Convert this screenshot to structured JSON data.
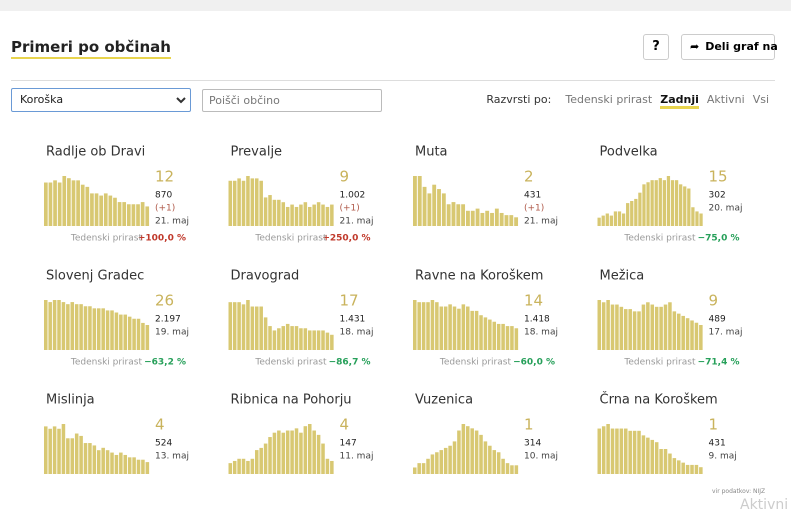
{
  "header": {
    "title": "Primeri po občinah",
    "help": "?",
    "share": "Deli graf na"
  },
  "controls": {
    "region": "Koroška",
    "search": "Poišči občino",
    "sort_label": "Razvrsti po:",
    "sort_options": [
      "Tedenski prirast",
      "Zadnji",
      "Aktivni",
      "Vsi"
    ],
    "sort_active": 1
  },
  "weekly_label": "Tedenski prirast",
  "panels": [
    {
      "name": "Radlje ob Dravi",
      "latest": "12",
      "total": "870",
      "note": "(+1)",
      "date": "21. maj",
      "weekly": "+100,0 %",
      "bars": [
        40,
        40,
        42,
        40,
        46,
        44,
        42,
        42,
        38,
        36,
        30,
        30,
        28,
        30,
        28,
        26,
        22,
        22,
        20,
        20,
        20,
        22,
        18
      ]
    },
    {
      "name": "Prevalje",
      "latest": "9",
      "total": "1.002",
      "note": "(+1)",
      "date": "21. maj",
      "weekly": "+250,0 %",
      "bars": [
        38,
        38,
        40,
        38,
        42,
        40,
        40,
        38,
        24,
        26,
        22,
        22,
        20,
        16,
        18,
        16,
        18,
        20,
        16,
        18,
        20,
        18,
        16,
        18
      ]
    },
    {
      "name": "Muta",
      "latest": "2",
      "total": "431",
      "note": "(+1)",
      "date": "21. maj",
      "bars": [
        46,
        46,
        36,
        30,
        38,
        34,
        30,
        20,
        22,
        20,
        20,
        14,
        14,
        16,
        12,
        14,
        12,
        16,
        12,
        10,
        10,
        8
      ]
    },
    {
      "name": "Podvelka",
      "latest": "15",
      "total": "302",
      "date": "20. maj",
      "weekly": "−75,0 %",
      "bars": [
        8,
        10,
        12,
        10,
        14,
        14,
        12,
        22,
        24,
        26,
        32,
        40,
        42,
        44,
        44,
        46,
        44,
        48,
        44,
        44,
        40,
        38,
        36,
        18,
        14,
        12
      ]
    },
    {
      "name": "Slovenj Gradec",
      "latest": "26",
      "total": "2.197",
      "date": "19. maj",
      "weekly": "−63,2 %",
      "bars": [
        48,
        46,
        48,
        48,
        46,
        44,
        46,
        44,
        44,
        42,
        42,
        40,
        40,
        40,
        38,
        38,
        36,
        34,
        34,
        32,
        30,
        30,
        26,
        24
      ]
    },
    {
      "name": "Dravograd",
      "latest": "17",
      "total": "1.431",
      "date": "18. maj",
      "weekly": "−86,7 %",
      "bars": [
        44,
        44,
        44,
        42,
        46,
        40,
        40,
        40,
        30,
        22,
        18,
        20,
        22,
        24,
        22,
        22,
        20,
        20,
        18,
        18,
        18,
        18,
        16,
        14
      ]
    },
    {
      "name": "Ravne na Koroškem",
      "latest": "14",
      "total": "1.418",
      "date": "18. maj",
      "weekly": "−60,0 %",
      "bars": [
        46,
        44,
        44,
        44,
        46,
        44,
        40,
        40,
        42,
        40,
        38,
        42,
        40,
        36,
        36,
        32,
        30,
        28,
        26,
        24,
        24,
        22,
        22,
        20
      ]
    },
    {
      "name": "Mežica",
      "latest": "9",
      "total": "489",
      "date": "17. maj",
      "weekly": "−71,4 %",
      "bars": [
        44,
        42,
        44,
        40,
        40,
        38,
        36,
        36,
        34,
        34,
        40,
        42,
        40,
        38,
        38,
        40,
        42,
        34,
        32,
        30,
        28,
        26,
        24,
        22
      ]
    },
    {
      "name": "Mislinja",
      "latest": "4",
      "total": "524",
      "date": "13. maj",
      "bars": [
        40,
        38,
        40,
        38,
        42,
        30,
        30,
        34,
        32,
        26,
        26,
        24,
        20,
        22,
        20,
        18,
        16,
        18,
        16,
        14,
        14,
        12,
        12,
        10
      ]
    },
    {
      "name": "Ribnica na Pohorju",
      "latest": "4",
      "total": "147",
      "date": "11. maj",
      "bars": [
        10,
        12,
        14,
        14,
        12,
        14,
        22,
        24,
        28,
        34,
        38,
        40,
        38,
        40,
        40,
        42,
        38,
        44,
        46,
        40,
        36,
        28,
        14,
        12
      ]
    },
    {
      "name": "Vuzenica",
      "latest": "1",
      "total": "314",
      "date": "10. maj",
      "bars": [
        6,
        10,
        10,
        14,
        18,
        20,
        22,
        24,
        26,
        30,
        40,
        46,
        44,
        42,
        40,
        36,
        30,
        26,
        22,
        20,
        14,
        10,
        8,
        8
      ]
    },
    {
      "name": "Črna na Koroškem",
      "latest": "1",
      "total": "431",
      "date": "9. maj",
      "bars": [
        40,
        42,
        44,
        40,
        40,
        40,
        40,
        38,
        38,
        38,
        34,
        32,
        30,
        28,
        22,
        22,
        18,
        14,
        12,
        10,
        8,
        8,
        8,
        6
      ]
    }
  ],
  "footer": {
    "source": "vir podatkov: NIJZ",
    "overflow": "Aktivni"
  }
}
